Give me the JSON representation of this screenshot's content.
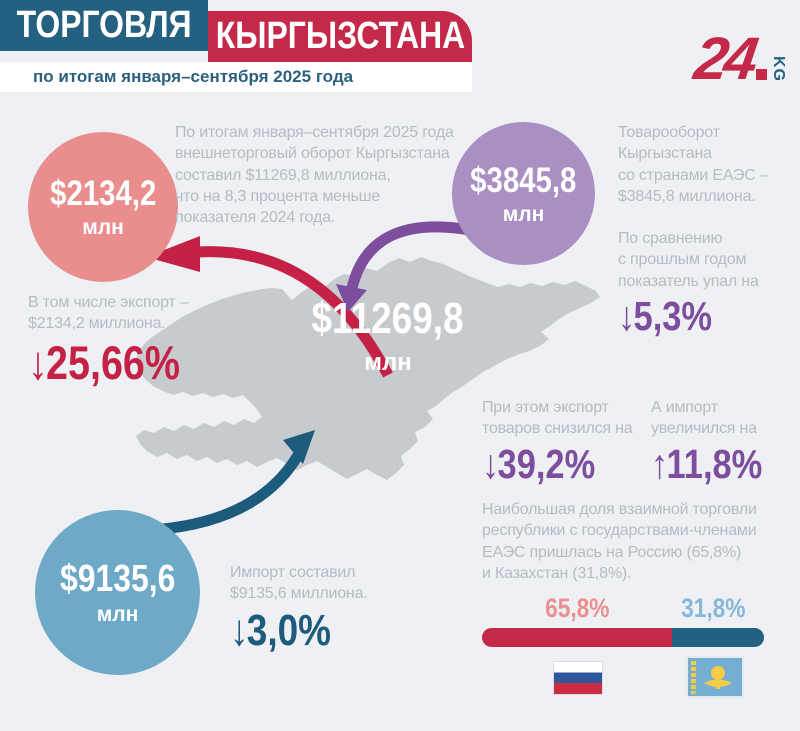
{
  "header": {
    "title_part1": "ТОРГОВЛЯ",
    "title_part2": "КЫРГЫЗСТАНА",
    "subtitle": "по итогам января–сентября 2025 года",
    "logo_number": "24",
    "logo_suffix": "KG"
  },
  "intro": {
    "text": "По итогам января–сентября 2025 года\nвнешнеторговый оборот Кыргызстана\nсоставил $11269,8 миллиона,\nчто на 8,3 процента меньше\nпоказателя 2024 года."
  },
  "total": {
    "value": "$11269,8",
    "unit": "млн"
  },
  "export_block": {
    "value": "$2134,2",
    "unit": "млн",
    "note": "В том числе экспорт –\n$2134,2 миллиона.",
    "arrow": "↓",
    "percent": "25,66%"
  },
  "import_block": {
    "value": "$9135,6",
    "unit": "млн",
    "note": "Импорт составил\n$9135,6 миллиона.",
    "arrow": "↓",
    "percent": "3,0%"
  },
  "eaeu": {
    "value": "$3845,8",
    "unit": "млн",
    "note": "Товарооборот\nКыргызстана\nсо странами ЕАЭС –\n$3845,8 миллиона.",
    "change_note": "По сравнению\nс прошлым годом\nпоказатель упал на",
    "arrow": "↓",
    "percent": "5,3%",
    "export_note": "При этом экспорт\nтоваров снизился на",
    "export_arrow": "↓",
    "export_percent": "39,2%",
    "import_note": "А импорт\nувеличился на",
    "import_arrow": "↑",
    "import_percent": "11,8%",
    "share_note": "Наибольшая доля взаимной торговли\nреспублики с государствами-членами\nЕАЭС пришлась на Россию (65,8%)\nи Казахстан (31,8%)."
  },
  "share_bar": {
    "russia_label": "65,8%",
    "kazakhstan_label": "31,8%",
    "russia_value": 65.8,
    "kazakhstan_value": 31.8
  },
  "chart_data": {
    "type": "bar",
    "title": "Торговля Кыргызстана по итогам января–сентября 2025 года",
    "series": [
      {
        "name": "Внешнеторговый оборот, $ млн",
        "value": 11269.8,
        "change_pct": -8.3
      },
      {
        "name": "Экспорт, $ млн",
        "value": 2134.2,
        "change_pct": -25.66
      },
      {
        "name": "Импорт, $ млн",
        "value": 9135.6,
        "change_pct": -3.0
      },
      {
        "name": "Товарооборот со странами ЕАЭС, $ млн",
        "value": 3845.8,
        "change_pct": -5.3
      },
      {
        "name": "Экспорт в страны ЕАЭС, изменение %",
        "value": -39.2
      },
      {
        "name": "Импорт из стран ЕАЭС, изменение %",
        "value": 11.8
      }
    ],
    "share": {
      "categories": [
        "Россия",
        "Казахстан"
      ],
      "values": [
        65.8,
        31.8
      ],
      "legend_position": "bottom-right"
    }
  },
  "colors": {
    "background": "#eef0f3",
    "header_teal": "#24607f",
    "header_red": "#c5294a",
    "circle_pink": "#e98d8d",
    "circle_purple": "#a98fc2",
    "circle_blue": "#6fa9c8",
    "map_gray": "#c7cbce",
    "accent_red": "#c52045",
    "accent_purple": "#7d4d9e",
    "accent_teal": "#1d5b7c",
    "text_gray": "#b3bcc5"
  }
}
